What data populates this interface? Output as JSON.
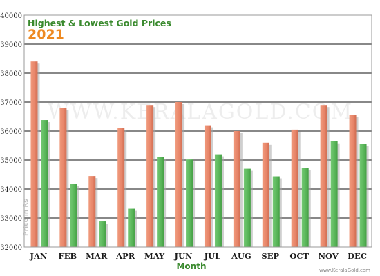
{
  "chart_data": {
    "type": "bar",
    "title": "Highest & Lowest Gold Prices",
    "subtitle": "2021",
    "watermark": "WWW.KERALAGOLD.COM",
    "xlabel": "Month",
    "ylabel": "Price in Rs",
    "ylim": [
      32000,
      40000
    ],
    "ytick_step": 1000,
    "grid": true,
    "categories": [
      "JAN",
      "FEB",
      "MAR",
      "APR",
      "MAY",
      "JUN",
      "JUL",
      "AUG",
      "SEP",
      "OCT",
      "NOV",
      "DEC"
    ],
    "series": [
      {
        "values": [
          38400,
          36800,
          34450,
          36100,
          36900,
          37000,
          36200,
          36000,
          35600,
          36050,
          36900,
          36550
        ],
        "color": "#e8866a"
      },
      {
        "values": [
          36380,
          34180,
          32880,
          33320,
          35100,
          35020,
          35200,
          34700,
          34440,
          34720,
          35650,
          35570
        ],
        "color": "#5cb85c"
      }
    ],
    "footer_credit": "www.KeralaGold.com",
    "colors": {
      "title": "#3a8a2e",
      "subtitle": "#ee8a22",
      "xlabel": "#3a8a2e",
      "plot_bg": "#ffffff",
      "frame": "#9a9a9a"
    }
  }
}
